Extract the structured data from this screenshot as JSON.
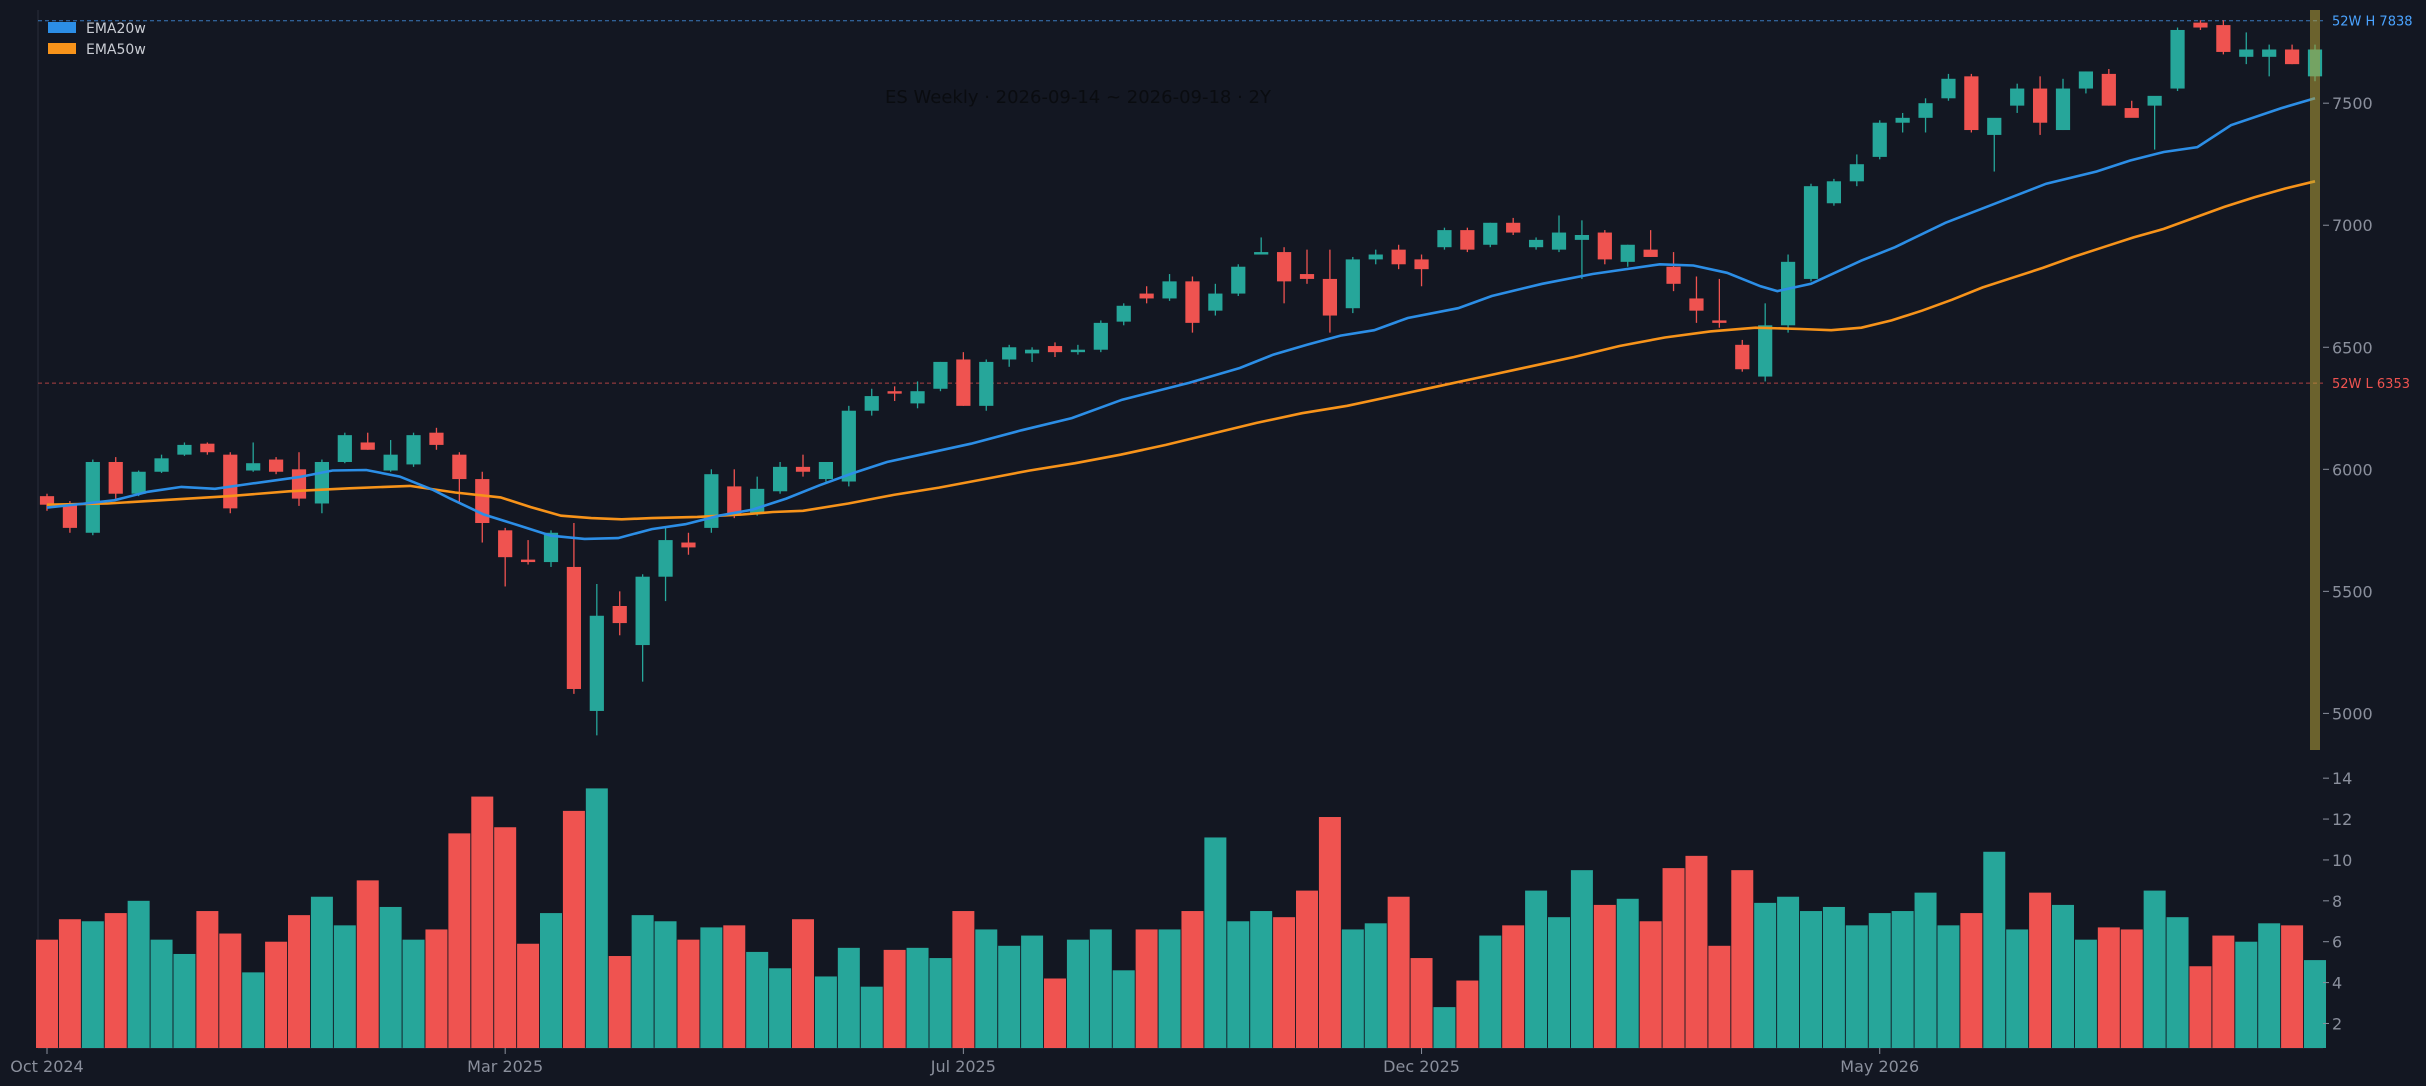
{
  "colors": {
    "background": "#131722",
    "up": "#26a69a",
    "down": "#ef5350",
    "ema20": "#2c8ee6",
    "ema50": "#f7931a",
    "axis": "#8a8f9c",
    "highlight": "#b5a036"
  },
  "chart_data": {
    "type": "candlestick",
    "title": "ES Weekly · 2026-09-14 ~ 2026-09-18 · 2Y",
    "legend": {
      "position": "top-left",
      "items": [
        {
          "name": "EMA20w",
          "color": "#2c8ee6"
        },
        {
          "name": "EMA50w",
          "color": "#f7931a"
        }
      ]
    },
    "price_axis": {
      "ylim": [
        4850,
        7890
      ],
      "ticks": [
        5000,
        5500,
        6000,
        6500,
        7000,
        7500
      ]
    },
    "volume_axis": {
      "ylim": [
        0.8,
        14.4
      ],
      "ticks": [
        2,
        4,
        6,
        8,
        10,
        12,
        14
      ]
    },
    "x_ticks": [
      {
        "index": 0,
        "label": "Oct 2024"
      },
      {
        "index": 20,
        "label": "Mar 2025"
      },
      {
        "index": 40,
        "label": "Jul 2025"
      },
      {
        "index": 60,
        "label": "Dec 2025"
      },
      {
        "index": 80,
        "label": "May 2026"
      }
    ],
    "ref_lines": [
      {
        "label": "52W H",
        "value": 7838,
        "value_text": "7838",
        "kind": "high"
      },
      {
        "label": "52W L",
        "value": 6353,
        "value_text": "6353",
        "kind": "low"
      }
    ],
    "candles": [
      [
        5890,
        5900,
        5830,
        5855,
        6.1
      ],
      [
        5855,
        5870,
        5740,
        5760,
        7.1
      ],
      [
        5740,
        6040,
        5730,
        6030,
        7.0
      ],
      [
        6030,
        6050,
        5880,
        5900,
        7.4
      ],
      [
        5900,
        5995,
        5890,
        5990,
        8.0
      ],
      [
        5990,
        6060,
        5985,
        6045,
        6.1
      ],
      [
        6060,
        6110,
        6055,
        6100,
        5.4
      ],
      [
        6105,
        6110,
        6060,
        6070,
        7.5
      ],
      [
        6060,
        6070,
        5820,
        5840,
        6.4
      ],
      [
        5995,
        6110,
        5990,
        6025,
        4.5
      ],
      [
        6040,
        6050,
        5980,
        5990,
        6.0
      ],
      [
        6000,
        6070,
        5850,
        5880,
        7.3
      ],
      [
        5860,
        6040,
        5820,
        6030,
        8.2
      ],
      [
        6030,
        6150,
        6025,
        6140,
        6.8
      ],
      [
        6110,
        6150,
        6080,
        6080,
        9.0
      ],
      [
        5995,
        6120,
        5990,
        6060,
        7.7
      ],
      [
        6020,
        6150,
        6010,
        6140,
        6.1
      ],
      [
        6150,
        6170,
        6080,
        6100,
        6.6
      ],
      [
        6060,
        6070,
        5860,
        5960,
        11.3
      ],
      [
        5960,
        5990,
        5700,
        5780,
        13.1
      ],
      [
        5750,
        5760,
        5520,
        5640,
        11.6
      ],
      [
        5630,
        5710,
        5610,
        5620,
        5.9
      ],
      [
        5620,
        5750,
        5600,
        5740,
        7.4
      ],
      [
        5600,
        5780,
        5080,
        5100,
        12.4
      ],
      [
        5010,
        5530,
        4910,
        5400,
        13.5
      ],
      [
        5440,
        5500,
        5320,
        5370,
        5.3
      ],
      [
        5280,
        5570,
        5130,
        5560,
        7.3
      ],
      [
        5560,
        5760,
        5460,
        5710,
        7.0
      ],
      [
        5700,
        5740,
        5650,
        5680,
        6.1
      ],
      [
        5760,
        6000,
        5740,
        5980,
        6.7
      ],
      [
        5930,
        6000,
        5800,
        5810,
        6.8
      ],
      [
        5820,
        5970,
        5810,
        5920,
        5.5
      ],
      [
        5910,
        6030,
        5900,
        6010,
        4.7
      ],
      [
        6010,
        6060,
        5970,
        5990,
        7.1
      ],
      [
        5960,
        6030,
        5950,
        6030,
        4.3
      ],
      [
        5950,
        6260,
        5930,
        6240,
        5.7
      ],
      [
        6240,
        6330,
        6220,
        6300,
        3.8
      ],
      [
        6320,
        6340,
        6280,
        6310,
        5.6
      ],
      [
        6270,
        6360,
        6250,
        6320,
        5.7
      ],
      [
        6330,
        6440,
        6320,
        6440,
        5.2
      ],
      [
        6450,
        6480,
        6260,
        6260,
        7.5
      ],
      [
        6260,
        6450,
        6240,
        6440,
        6.6
      ],
      [
        6450,
        6510,
        6420,
        6500,
        5.8
      ],
      [
        6475,
        6500,
        6440,
        6490,
        6.3
      ],
      [
        6505,
        6520,
        6460,
        6480,
        4.2
      ],
      [
        6480,
        6510,
        6470,
        6490,
        6.1
      ],
      [
        6490,
        6610,
        6480,
        6600,
        6.6
      ],
      [
        6605,
        6680,
        6590,
        6670,
        4.6
      ],
      [
        6720,
        6750,
        6680,
        6700,
        6.6
      ],
      [
        6700,
        6800,
        6690,
        6770,
        6.6
      ],
      [
        6770,
        6790,
        6560,
        6600,
        7.5
      ],
      [
        6650,
        6760,
        6630,
        6720,
        11.1
      ],
      [
        6720,
        6840,
        6710,
        6830,
        7.0
      ],
      [
        6880,
        6950,
        6880,
        6890,
        7.5
      ],
      [
        6890,
        6910,
        6680,
        6770,
        7.2
      ],
      [
        6800,
        6900,
        6760,
        6780,
        8.5
      ],
      [
        6780,
        6900,
        6560,
        6630,
        12.1
      ],
      [
        6660,
        6870,
        6640,
        6860,
        6.6
      ],
      [
        6860,
        6900,
        6840,
        6880,
        6.9
      ],
      [
        6900,
        6920,
        6820,
        6840,
        8.2
      ],
      [
        6860,
        6880,
        6750,
        6820,
        5.2
      ],
      [
        6910,
        6990,
        6900,
        6980,
        2.8
      ],
      [
        6980,
        6990,
        6890,
        6900,
        4.1
      ],
      [
        6920,
        7010,
        6910,
        7010,
        6.3
      ],
      [
        7010,
        7030,
        6960,
        6970,
        6.8
      ],
      [
        6910,
        6950,
        6900,
        6940,
        8.5
      ],
      [
        6900,
        7040,
        6890,
        6970,
        7.2
      ],
      [
        6940,
        7020,
        6780,
        6960,
        9.5
      ],
      [
        6970,
        6980,
        6840,
        6860,
        7.8
      ],
      [
        6850,
        6920,
        6830,
        6920,
        8.1
      ],
      [
        6900,
        6980,
        6870,
        6870,
        7.0
      ],
      [
        6830,
        6890,
        6730,
        6760,
        9.6
      ],
      [
        6700,
        6790,
        6600,
        6650,
        10.2
      ],
      [
        6610,
        6780,
        6580,
        6600,
        5.8
      ],
      [
        6510,
        6530,
        6400,
        6410,
        9.5
      ],
      [
        6380,
        6680,
        6360,
        6590,
        7.9
      ],
      [
        6590,
        6880,
        6560,
        6850,
        8.2
      ],
      [
        6780,
        7170,
        6770,
        7160,
        7.5
      ],
      [
        7090,
        7190,
        7080,
        7180,
        7.7
      ],
      [
        7180,
        7290,
        7160,
        7250,
        6.8
      ],
      [
        7280,
        7430,
        7270,
        7420,
        7.4
      ],
      [
        7420,
        7460,
        7380,
        7440,
        7.5
      ],
      [
        7440,
        7520,
        7380,
        7500,
        8.4
      ],
      [
        7520,
        7620,
        7510,
        7600,
        6.8
      ],
      [
        7610,
        7620,
        7380,
        7390,
        7.4
      ],
      [
        7370,
        7420,
        7220,
        7440,
        10.4
      ],
      [
        7490,
        7580,
        7460,
        7560,
        6.6
      ],
      [
        7560,
        7610,
        7370,
        7420,
        8.4
      ],
      [
        7390,
        7600,
        7390,
        7560,
        7.8
      ],
      [
        7560,
        7630,
        7540,
        7630,
        6.1
      ],
      [
        7620,
        7640,
        7490,
        7490,
        6.7
      ],
      [
        7480,
        7510,
        7450,
        7440,
        6.6
      ],
      [
        7490,
        7510,
        7310,
        7530,
        8.5
      ],
      [
        7560,
        7810,
        7550,
        7800,
        7.2
      ],
      [
        7830,
        7840,
        7800,
        7810,
        4.8
      ],
      [
        7820,
        7840,
        7700,
        7710,
        6.3
      ],
      [
        7690,
        7790,
        7660,
        7720,
        6.0
      ],
      [
        7690,
        7740,
        7610,
        7720,
        6.9
      ],
      [
        7720,
        7740,
        7660,
        7660,
        6.8
      ],
      [
        7610,
        7740,
        7590,
        7720,
        5.1
      ]
    ],
    "ema20": [
      [
        0,
        5843
      ],
      [
        2,
        5858
      ],
      [
        4,
        5873
      ],
      [
        6,
        5908
      ],
      [
        8,
        5928
      ],
      [
        10,
        5920
      ],
      [
        12,
        5940
      ],
      [
        15,
        5968
      ],
      [
        17,
        5995
      ],
      [
        19,
        5997
      ],
      [
        21,
        5970
      ],
      [
        23,
        5915
      ],
      [
        24,
        5880
      ],
      [
        26,
        5815
      ],
      [
        28,
        5772
      ],
      [
        30,
        5728
      ],
      [
        32,
        5715
      ],
      [
        34,
        5718
      ],
      [
        36,
        5755
      ],
      [
        38,
        5775
      ],
      [
        40,
        5810
      ],
      [
        42,
        5835
      ],
      [
        44,
        5880
      ],
      [
        46,
        5935
      ],
      [
        48,
        5985
      ],
      [
        50,
        6030
      ],
      [
        52,
        6060
      ],
      [
        55,
        6105
      ],
      [
        58,
        6160
      ],
      [
        61,
        6210
      ],
      [
        64,
        6285
      ],
      [
        68,
        6355
      ],
      [
        71,
        6415
      ],
      [
        73,
        6470
      ],
      [
        75,
        6510
      ],
      [
        77,
        6548
      ],
      [
        79,
        6570
      ],
      [
        81,
        6620
      ],
      [
        84,
        6660
      ],
      [
        86,
        6710
      ],
      [
        89,
        6760
      ],
      [
        92,
        6800
      ],
      [
        96,
        6840
      ],
      [
        98,
        6835
      ],
      [
        100,
        6805
      ],
      [
        102,
        6750
      ],
      [
        103,
        6730
      ],
      [
        105,
        6760
      ],
      [
        108,
        6855
      ],
      [
        110,
        6910
      ],
      [
        113,
        7010
      ],
      [
        116,
        7090
      ],
      [
        119,
        7170
      ],
      [
        122,
        7220
      ],
      [
        124,
        7265
      ],
      [
        126,
        7300
      ],
      [
        128,
        7320
      ],
      [
        130,
        7410
      ],
      [
        133,
        7480
      ],
      [
        135,
        7520
      ]
    ],
    "ema50": [
      [
        0,
        5855
      ],
      [
        4,
        5860
      ],
      [
        8,
        5875
      ],
      [
        12,
        5890
      ],
      [
        16,
        5910
      ],
      [
        20,
        5922
      ],
      [
        24,
        5932
      ],
      [
        27,
        5905
      ],
      [
        30,
        5885
      ],
      [
        32,
        5845
      ],
      [
        34,
        5810
      ],
      [
        36,
        5800
      ],
      [
        38,
        5795
      ],
      [
        40,
        5800
      ],
      [
        43,
        5805
      ],
      [
        46,
        5815
      ],
      [
        48,
        5825
      ],
      [
        50,
        5830
      ],
      [
        53,
        5860
      ],
      [
        56,
        5895
      ],
      [
        59,
        5925
      ],
      [
        62,
        5960
      ],
      [
        65,
        5995
      ],
      [
        68,
        6025
      ],
      [
        71,
        6060
      ],
      [
        74,
        6100
      ],
      [
        77,
        6145
      ],
      [
        80,
        6190
      ],
      [
        83,
        6230
      ],
      [
        86,
        6260
      ],
      [
        89,
        6300
      ],
      [
        92,
        6340
      ],
      [
        95,
        6380
      ],
      [
        98,
        6420
      ],
      [
        101,
        6460
      ],
      [
        104,
        6505
      ],
      [
        107,
        6540
      ],
      [
        110,
        6565
      ],
      [
        113,
        6580
      ],
      [
        116,
        6575
      ],
      [
        118,
        6570
      ],
      [
        120,
        6580
      ],
      [
        122,
        6610
      ],
      [
        124,
        6650
      ],
      [
        126,
        6695
      ],
      [
        128,
        6745
      ],
      [
        130,
        6785
      ],
      [
        132,
        6825
      ],
      [
        134,
        6870
      ],
      [
        136,
        6910
      ],
      [
        138,
        6950
      ],
      [
        140,
        6985
      ],
      [
        142,
        7030
      ],
      [
        144,
        7075
      ],
      [
        146,
        7115
      ],
      [
        148,
        7150
      ],
      [
        150,
        7180
      ]
    ]
  }
}
